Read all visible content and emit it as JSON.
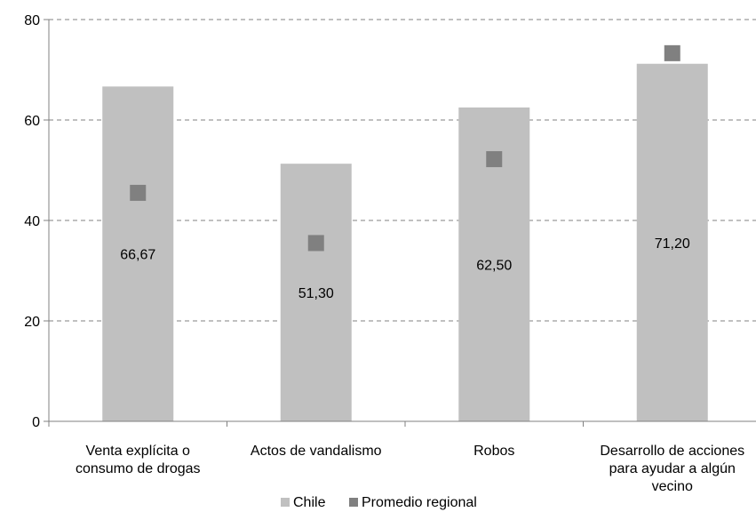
{
  "chart_data": {
    "type": "bar",
    "categories": [
      [
        "Venta explícita o",
        "consumo de drogas"
      ],
      [
        "Actos de vandalismo"
      ],
      [
        "Robos"
      ],
      [
        "Desarrollo de acciones",
        "para ayudar a algún",
        "vecino"
      ]
    ],
    "series": [
      {
        "name": "Chile",
        "kind": "bar",
        "values": [
          66.67,
          51.3,
          62.5,
          71.2
        ],
        "color": "#c0c0c0"
      },
      {
        "name": "Promedio regional",
        "kind": "marker",
        "values": [
          45.5,
          35.5,
          52.2,
          73.3
        ],
        "color": "#808080"
      }
    ],
    "data_labels": [
      "66,67",
      "51,30",
      "62,50",
      "71,20"
    ],
    "ylim": [
      0,
      80
    ],
    "y_ticks": [
      0,
      20,
      40,
      60,
      80
    ],
    "y_tick_labels": [
      "0",
      "20",
      "40",
      "60",
      "80"
    ],
    "grid": "horizontal-dashed",
    "legend_position": "bottom",
    "title": "",
    "xlabel": "",
    "ylabel": ""
  }
}
